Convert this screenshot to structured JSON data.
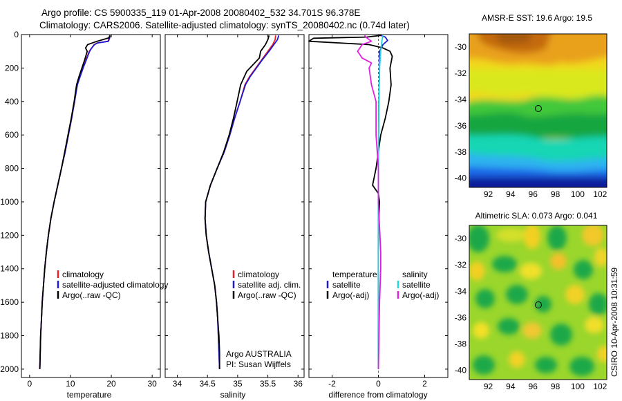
{
  "header": {
    "line1": "Argo profile: CS 5900335_119 01-Apr-2008 20080402_532 34.701S 96.378E",
    "line2": "Climatology: CARS2006. Satellite-adjusted climatology: synTS_20080402.nc (0.74d later)"
  },
  "side_label": "CSIRO 10-Apr-2008 10:31:59",
  "colors": {
    "climatology": "#e8202a",
    "satellite": "#1b1bd6",
    "argo": "#000000",
    "satellite_salinity": "#22d8e0",
    "argo_salinity": "#e020e0",
    "float_marker": "#000000"
  },
  "chart_data": [
    {
      "type": "line",
      "title": "",
      "xlabel": "temperature",
      "ylabel": "",
      "xlim": [
        -2,
        32
      ],
      "ylim": [
        2050,
        0
      ],
      "xticks": [
        "0",
        "10",
        "20",
        "30"
      ],
      "yticks": [
        "0",
        "200",
        "400",
        "600",
        "800",
        "1000",
        "1200",
        "1400",
        "1600",
        "1800",
        "2000"
      ],
      "legend": [
        "climatology",
        "satellite-adjusted climatology",
        "Argo(..raw -QC)"
      ],
      "series": [
        {
          "name": "climatology",
          "color_key": "climatology",
          "points": [
            [
              19.6,
              5
            ],
            [
              19.5,
              20
            ],
            [
              19.2,
              40
            ],
            [
              16.5,
              50
            ],
            [
              15.8,
              60
            ],
            [
              15.2,
              80
            ],
            [
              14.6,
              100
            ],
            [
              13.8,
              150
            ],
            [
              13.0,
              200
            ],
            [
              12.3,
              250
            ],
            [
              11.6,
              300
            ],
            [
              11.0,
              400
            ],
            [
              10.3,
              500
            ],
            [
              9.5,
              600
            ],
            [
              8.7,
              700
            ],
            [
              7.8,
              800
            ],
            [
              6.9,
              900
            ],
            [
              6.0,
              1000
            ],
            [
              5.2,
              1100
            ],
            [
              4.6,
              1200
            ],
            [
              4.1,
              1300
            ],
            [
              3.7,
              1400
            ],
            [
              3.4,
              1500
            ],
            [
              3.1,
              1600
            ],
            [
              2.9,
              1700
            ],
            [
              2.7,
              1800
            ],
            [
              2.6,
              1900
            ],
            [
              2.5,
              2000
            ]
          ]
        },
        {
          "name": "satellite-adjusted climatology",
          "color_key": "satellite",
          "points": [
            [
              19.7,
              5
            ],
            [
              19.6,
              20
            ],
            [
              19.3,
              40
            ],
            [
              16.7,
              50
            ],
            [
              15.9,
              60
            ],
            [
              15.2,
              80
            ],
            [
              14.7,
              100
            ],
            [
              13.9,
              150
            ],
            [
              13.1,
              200
            ],
            [
              12.4,
              250
            ],
            [
              11.7,
              300
            ],
            [
              11.0,
              400
            ],
            [
              10.3,
              500
            ],
            [
              9.5,
              600
            ],
            [
              8.7,
              700
            ],
            [
              7.8,
              800
            ],
            [
              6.9,
              900
            ],
            [
              6.0,
              1000
            ],
            [
              5.2,
              1100
            ],
            [
              4.6,
              1200
            ],
            [
              4.1,
              1300
            ],
            [
              3.7,
              1400
            ],
            [
              3.4,
              1500
            ],
            [
              3.1,
              1600
            ],
            [
              2.9,
              1700
            ],
            [
              2.7,
              1800
            ],
            [
              2.6,
              1900
            ],
            [
              2.5,
              2000
            ]
          ]
        },
        {
          "name": "Argo(..raw -QC)",
          "color_key": "argo",
          "points": [
            [
              19.7,
              5
            ],
            [
              19.4,
              20
            ],
            [
              16.5,
              40
            ],
            [
              14.2,
              60
            ],
            [
              13.7,
              80
            ],
            [
              14.1,
              100
            ],
            [
              13.5,
              150
            ],
            [
              12.8,
              200
            ],
            [
              12.1,
              250
            ],
            [
              11.5,
              300
            ],
            [
              10.9,
              400
            ],
            [
              10.2,
              500
            ],
            [
              9.4,
              600
            ],
            [
              8.6,
              700
            ],
            [
              7.8,
              800
            ],
            [
              6.9,
              900
            ],
            [
              6.0,
              1000
            ],
            [
              5.2,
              1100
            ],
            [
              4.6,
              1200
            ],
            [
              4.1,
              1300
            ],
            [
              3.7,
              1400
            ],
            [
              3.4,
              1500
            ],
            [
              3.1,
              1600
            ],
            [
              2.9,
              1700
            ],
            [
              2.7,
              1800
            ],
            [
              2.6,
              1900
            ],
            [
              2.5,
              2000
            ]
          ]
        }
      ]
    },
    {
      "type": "line",
      "title": "",
      "xlabel": "salinity",
      "ylabel": "",
      "xlim": [
        33.8,
        36.1
      ],
      "ylim": [
        2050,
        0
      ],
      "xticks": [
        "34",
        "34.5",
        "35",
        "35.5",
        "36"
      ],
      "legend": [
        "climatology",
        "satellite adj. clim.",
        "Argo(..raw -QC)"
      ],
      "annotation": [
        "Argo AUSTRALIA",
        "PI: Susan Wijffels"
      ],
      "series": [
        {
          "name": "climatology",
          "color_key": "climatology",
          "points": [
            [
              35.63,
              5
            ],
            [
              35.62,
              30
            ],
            [
              35.58,
              60
            ],
            [
              35.5,
              100
            ],
            [
              35.4,
              150
            ],
            [
              35.3,
              200
            ],
            [
              35.2,
              250
            ],
            [
              35.12,
              300
            ],
            [
              35.04,
              400
            ],
            [
              34.95,
              500
            ],
            [
              34.87,
              600
            ],
            [
              34.78,
              700
            ],
            [
              34.66,
              800
            ],
            [
              34.55,
              900
            ],
            [
              34.47,
              1000
            ],
            [
              34.46,
              1100
            ],
            [
              34.48,
              1200
            ],
            [
              34.52,
              1300
            ],
            [
              34.57,
              1400
            ],
            [
              34.62,
              1500
            ],
            [
              34.65,
              1600
            ],
            [
              34.67,
              1700
            ],
            [
              34.68,
              1800
            ],
            [
              34.69,
              1900
            ],
            [
              34.7,
              2000
            ]
          ]
        },
        {
          "name": "satellite adj. clim.",
          "color_key": "satellite",
          "points": [
            [
              35.68,
              5
            ],
            [
              35.66,
              30
            ],
            [
              35.6,
              60
            ],
            [
              35.52,
              100
            ],
            [
              35.41,
              150
            ],
            [
              35.31,
              200
            ],
            [
              35.21,
              250
            ],
            [
              35.13,
              300
            ],
            [
              35.04,
              400
            ],
            [
              34.95,
              500
            ],
            [
              34.87,
              600
            ],
            [
              34.78,
              700
            ],
            [
              34.66,
              800
            ],
            [
              34.55,
              900
            ],
            [
              34.47,
              1000
            ],
            [
              34.46,
              1100
            ],
            [
              34.48,
              1200
            ],
            [
              34.52,
              1300
            ],
            [
              34.57,
              1400
            ],
            [
              34.62,
              1500
            ],
            [
              34.65,
              1600
            ],
            [
              34.67,
              1700
            ],
            [
              34.68,
              1800
            ],
            [
              34.69,
              1900
            ],
            [
              34.7,
              2000
            ]
          ]
        },
        {
          "name": "Argo(..raw -QC)",
          "color_key": "argo",
          "points": [
            [
              35.52,
              5
            ],
            [
              35.5,
              30
            ],
            [
              35.46,
              60
            ],
            [
              35.38,
              100
            ],
            [
              35.36,
              140
            ],
            [
              35.15,
              220
            ],
            [
              35.05,
              300
            ],
            [
              34.98,
              420
            ],
            [
              34.93,
              500
            ],
            [
              34.86,
              600
            ],
            [
              34.77,
              700
            ],
            [
              34.66,
              800
            ],
            [
              34.55,
              900
            ],
            [
              34.47,
              1000
            ],
            [
              34.46,
              1100
            ],
            [
              34.48,
              1200
            ],
            [
              34.52,
              1300
            ],
            [
              34.57,
              1400
            ],
            [
              34.62,
              1500
            ],
            [
              34.65,
              1600
            ],
            [
              34.67,
              1700
            ],
            [
              34.69,
              1800
            ],
            [
              34.7,
              1900
            ],
            [
              34.7,
              2000
            ]
          ]
        }
      ]
    },
    {
      "type": "line",
      "title": "",
      "xlabel": "difference from climatology",
      "ylabel": "",
      "xlim": [
        -3,
        3
      ],
      "ylim": [
        2050,
        0
      ],
      "xticks": [
        "-2",
        "0",
        "2"
      ],
      "legend_temperature": {
        "heading": "temperature",
        "entries": [
          "satellite",
          "Argo(-adj)"
        ]
      },
      "legend_salinity": {
        "heading": "salinity",
        "entries": [
          "satellite",
          "Argo(-adj)"
        ]
      },
      "series": [
        {
          "name": "temperature satellite",
          "color_key": "satellite",
          "points": [
            [
              0.1,
              5
            ],
            [
              0.3,
              15
            ],
            [
              0.4,
              35
            ],
            [
              0.2,
              60
            ],
            [
              0.05,
              100
            ],
            [
              0.05,
              200
            ],
            [
              0.02,
              400
            ],
            [
              0.0,
              800
            ],
            [
              0.0,
              2000
            ]
          ]
        },
        {
          "name": "temperature Argo(-adj)",
          "color_key": "argo",
          "points": [
            [
              0.1,
              5
            ],
            [
              -0.5,
              15
            ],
            [
              -2.8,
              22
            ],
            [
              -3.0,
              40
            ],
            [
              -0.4,
              60
            ],
            [
              0.2,
              80
            ],
            [
              0.5,
              100
            ],
            [
              0.6,
              130
            ],
            [
              0.5,
              200
            ],
            [
              0.55,
              300
            ],
            [
              0.45,
              400
            ],
            [
              0.3,
              500
            ],
            [
              0.1,
              600
            ],
            [
              0.0,
              700
            ],
            [
              -0.1,
              800
            ],
            [
              -0.25,
              900
            ],
            [
              0.0,
              950
            ],
            [
              0.05,
              1000
            ],
            [
              0.02,
              1100
            ],
            [
              0.0,
              1200
            ],
            [
              0.0,
              1500
            ],
            [
              0.0,
              2000
            ]
          ]
        },
        {
          "name": "salinity satellite",
          "color_key": "satellite_salinity",
          "points": [
            [
              0.2,
              5
            ],
            [
              0.15,
              40
            ],
            [
              0.1,
              100
            ],
            [
              0.05,
              200
            ],
            [
              0.02,
              400
            ],
            [
              0.0,
              800
            ],
            [
              0.0,
              2000
            ]
          ]
        },
        {
          "name": "salinity Argo(-adj)",
          "color_key": "argo_salinity",
          "points": [
            [
              -0.6,
              5
            ],
            [
              -0.5,
              20
            ],
            [
              -0.3,
              40
            ],
            [
              -0.7,
              60
            ],
            [
              -0.9,
              100
            ],
            [
              -0.7,
              140
            ],
            [
              -0.3,
              170
            ],
            [
              -0.4,
              200
            ],
            [
              -0.3,
              300
            ],
            [
              -0.1,
              400
            ],
            [
              -0.1,
              600
            ],
            [
              0.0,
              800
            ],
            [
              0.0,
              1000
            ],
            [
              0.1,
              1300
            ],
            [
              0.1,
              1400
            ],
            [
              0.05,
              1600
            ],
            [
              0.0,
              2000
            ]
          ]
        }
      ]
    },
    {
      "type": "heatmap",
      "title": "AMSR-E SST: 19.6 Argo: 19.5",
      "xlabel": "",
      "ylabel": "",
      "xlim": [
        90.3,
        102.6
      ],
      "ylim": [
        -40.7,
        -29.0
      ],
      "xticks": [
        "92",
        "94",
        "96",
        "98",
        "100",
        "102"
      ],
      "yticks": [
        "-30",
        "-32",
        "-34",
        "-36",
        "-38",
        "-40"
      ],
      "float_position": {
        "lon": 96.378,
        "lat": -34.701
      }
    },
    {
      "type": "heatmap",
      "title": "Altimetric SLA: 0.073 Argo: 0.041",
      "xlabel": "",
      "ylabel": "",
      "xlim": [
        90.3,
        102.6
      ],
      "ylim": [
        -40.7,
        -29.0
      ],
      "xticks": [
        "92",
        "94",
        "96",
        "98",
        "100",
        "102"
      ],
      "yticks": [
        "-30",
        "-32",
        "-34",
        "-36",
        "-38",
        "-40"
      ],
      "float_position": {
        "lon": 96.378,
        "lat": -34.701
      }
    }
  ]
}
